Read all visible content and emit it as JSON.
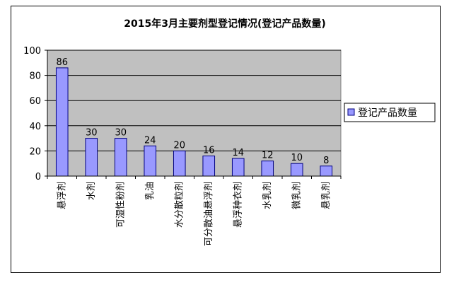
{
  "chart_data": {
    "type": "bar",
    "title": "2015年3月主要剂型登记情况(登记产品数量)",
    "categories": [
      "悬浮剂",
      "水剂",
      "可湿性粉剂",
      "乳油",
      "水分散粒剂",
      "可分散油悬浮剂",
      "悬浮种衣剂",
      "水乳剂",
      "微乳剂",
      "悬乳剂"
    ],
    "series": [
      {
        "name": "登记产品数量",
        "values": [
          86,
          30,
          30,
          24,
          20,
          16,
          14,
          12,
          10,
          8
        ]
      }
    ],
    "data_labels": [
      "86",
      "30",
      "30",
      "24",
      "20",
      "16",
      "14",
      "12",
      "10",
      "8"
    ],
    "yticks": [
      "0",
      "20",
      "40",
      "60",
      "80",
      "100"
    ],
    "ylim": [
      0,
      100
    ],
    "grid": true,
    "legend_position": "right",
    "colors": {
      "bar_fill": "#9999ff",
      "bar_stroke": "#000080",
      "plot_bg": "#c0c0c0",
      "grid": "#000000"
    }
  }
}
